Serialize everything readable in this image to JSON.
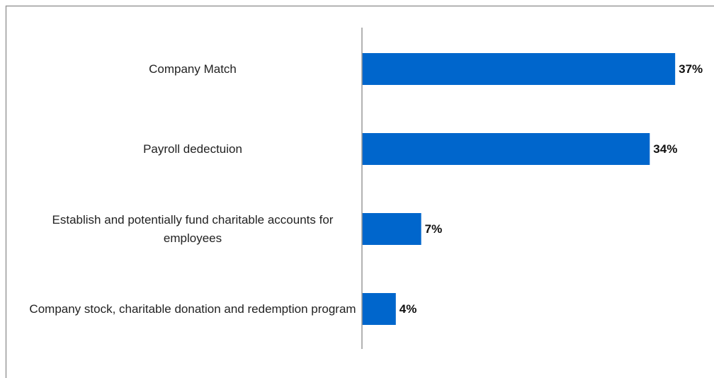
{
  "chart_data": {
    "type": "bar",
    "orientation": "horizontal",
    "categories": [
      "Company Match",
      "Payroll dedectuion",
      "Establish and potentially fund charitable accounts for employees",
      "Company stock, charitable donation and redemption program"
    ],
    "values": [
      37,
      34,
      7,
      4
    ],
    "value_labels": [
      "37%",
      "34%",
      "7%",
      "4%"
    ],
    "color": "#0066cc",
    "xlim": [
      0,
      40
    ]
  }
}
